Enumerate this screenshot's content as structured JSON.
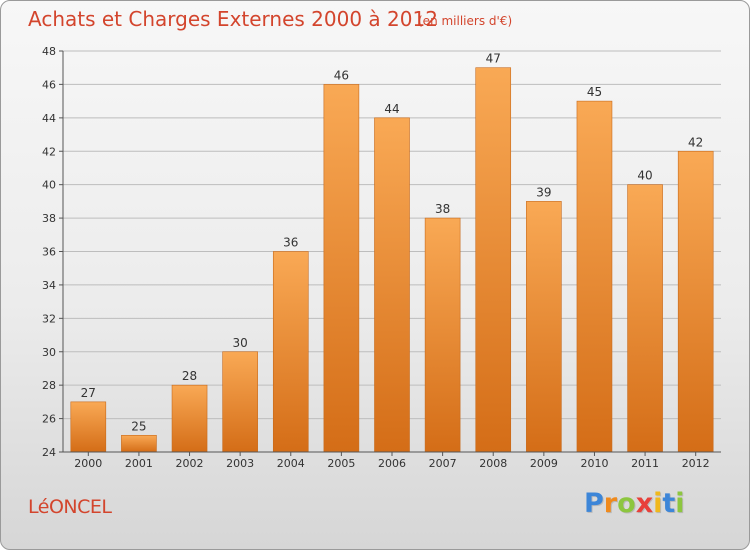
{
  "header": {
    "title": "Achats et Charges Externes 2000 à 2012",
    "subtitle": "(en milliers d'€)"
  },
  "footer": {
    "place": "LéONCEL",
    "logo_letters": [
      "P",
      "r",
      "o",
      "x",
      "i",
      "t",
      "i"
    ],
    "logo_colors": [
      "#3d86d8",
      "#f08a1c",
      "#8dc63f",
      "#e8403a",
      "#f0b81c",
      "#3d86d8",
      "#8dc63f"
    ]
  },
  "colors": {
    "title": "#d3452d",
    "bar_top": "#f9a955",
    "bar_bottom": "#d46d17",
    "grid": "#bdbdbd"
  },
  "chart_data": {
    "type": "bar",
    "categories": [
      "2000",
      "2001",
      "2002",
      "2003",
      "2004",
      "2005",
      "2006",
      "2007",
      "2008",
      "2009",
      "2010",
      "2011",
      "2012"
    ],
    "values": [
      27,
      25,
      28,
      30,
      36,
      46,
      44,
      38,
      47,
      39,
      45,
      40,
      42
    ],
    "ylim": [
      24,
      48
    ],
    "yticks": [
      24,
      26,
      28,
      30,
      32,
      34,
      36,
      38,
      40,
      42,
      44,
      46,
      48
    ],
    "grid": true
  }
}
